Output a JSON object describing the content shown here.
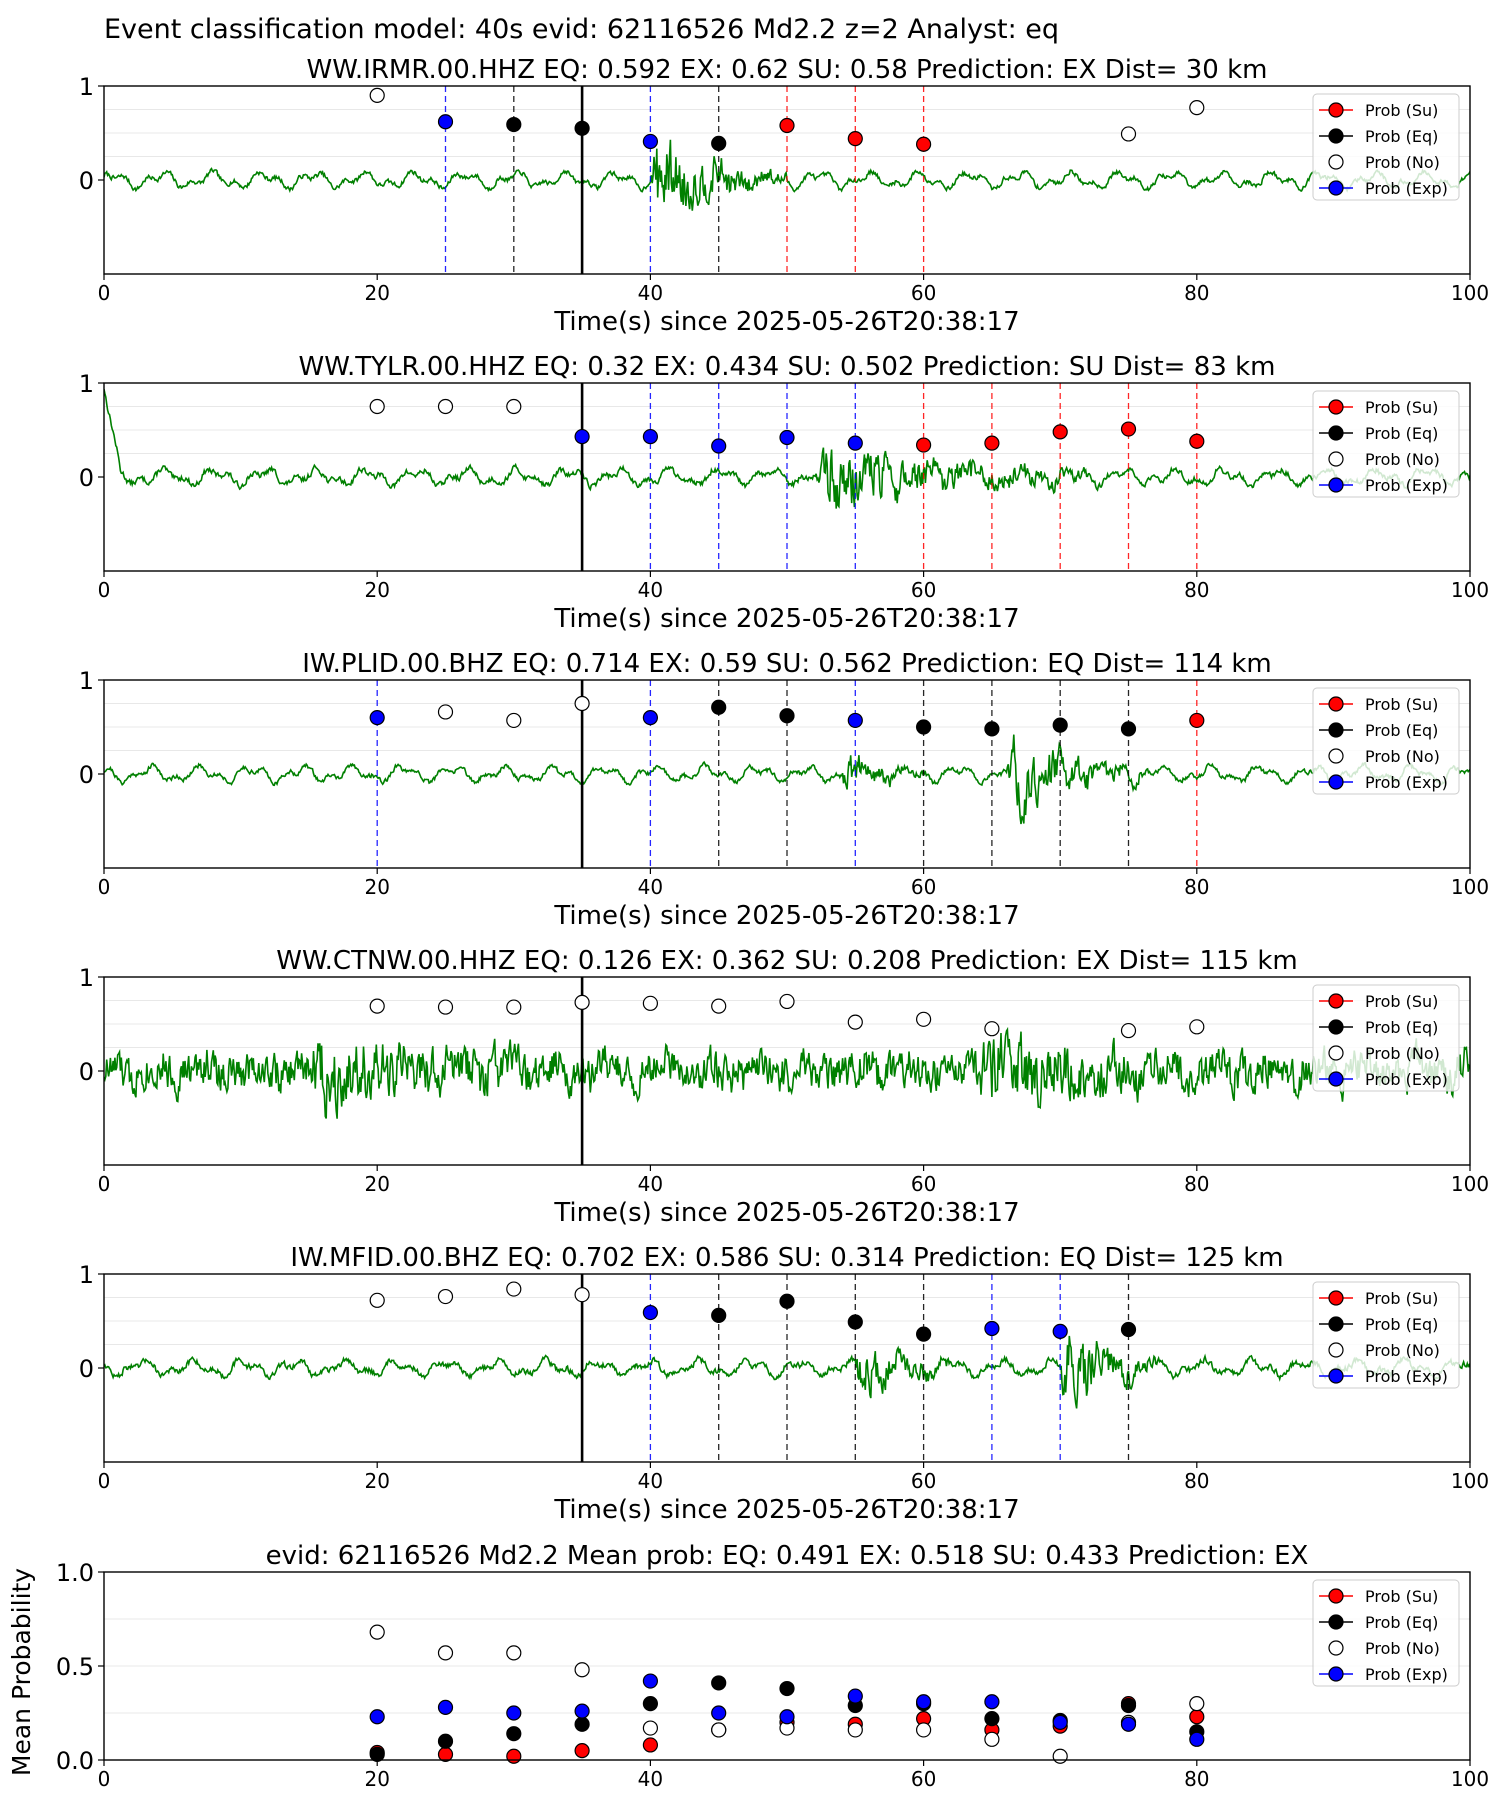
{
  "figure_title": "Event classification model: 40s evid: 62116526 Md2.2 z=2 Analyst: eq",
  "legend": [
    "Prob (Su)",
    "Prob (Eq)",
    "Prob (No)",
    "Prob (Exp)"
  ],
  "colors": {
    "su": "#ff0000",
    "eq": "#000000",
    "no": "#ffffff",
    "exp": "#0000ff",
    "trace": "#008000"
  },
  "chart_data": [
    {
      "type": "scatter",
      "title": "WW.IRMR.00.HHZ    EQ: 0.592  EX: 0.62  SU: 0.58   Prediction: EX    Dist= 30 km",
      "xlabel": "Time(s) since 2025-05-26T20:38:17",
      "ylabel": "",
      "xlim": [
        0,
        100
      ],
      "ylim": [
        -1,
        1
      ],
      "xticks": [
        "0",
        "20",
        "40",
        "60",
        "80",
        "100"
      ],
      "yticks": [
        "1",
        "0"
      ],
      "origin_x": 35,
      "seed": 7,
      "noise": 0.04,
      "burst_start": 40,
      "burst_end": 50,
      "burst_amp": 0.7,
      "burst2_start": 0,
      "burst2_end": 0,
      "burst2_amp": 0,
      "points": [
        {
          "x": 20,
          "y": 0.9,
          "cls": "no"
        },
        {
          "x": 25,
          "y": 0.62,
          "cls": "exp"
        },
        {
          "x": 30,
          "y": 0.59,
          "cls": "eq"
        },
        {
          "x": 35,
          "y": 0.55,
          "cls": "eq"
        },
        {
          "x": 40,
          "y": 0.41,
          "cls": "exp"
        },
        {
          "x": 45,
          "y": 0.39,
          "cls": "eq"
        },
        {
          "x": 50,
          "y": 0.58,
          "cls": "su"
        },
        {
          "x": 55,
          "y": 0.44,
          "cls": "su"
        },
        {
          "x": 60,
          "y": 0.38,
          "cls": "su"
        },
        {
          "x": 75,
          "y": 0.49,
          "cls": "no"
        },
        {
          "x": 80,
          "y": 0.77,
          "cls": "no"
        }
      ]
    },
    {
      "type": "scatter",
      "title": "WW.TYLR.00.HHZ   EQ: 0.32  EX: 0.434  SU: 0.502   Prediction: SU    Dist= 83 km",
      "xlabel": "Time(s) since 2025-05-26T20:38:17",
      "ylabel": "",
      "xlim": [
        0,
        100
      ],
      "ylim": [
        -1,
        1
      ],
      "xticks": [
        "0",
        "20",
        "40",
        "60",
        "80",
        "100"
      ],
      "yticks": [
        "1",
        "0"
      ],
      "origin_x": 35,
      "seed": 13,
      "noise": 0.05,
      "burst_start": 52,
      "burst_end": 72,
      "burst_amp": 0.55,
      "burst2_start": 0,
      "burst2_end": 0,
      "burst2_amp": 0,
      "points": [
        {
          "x": 20,
          "y": 0.75,
          "cls": "no"
        },
        {
          "x": 25,
          "y": 0.75,
          "cls": "no"
        },
        {
          "x": 30,
          "y": 0.75,
          "cls": "no"
        },
        {
          "x": 35,
          "y": 0.43,
          "cls": "exp"
        },
        {
          "x": 40,
          "y": 0.43,
          "cls": "exp"
        },
        {
          "x": 45,
          "y": 0.33,
          "cls": "exp"
        },
        {
          "x": 50,
          "y": 0.42,
          "cls": "exp"
        },
        {
          "x": 55,
          "y": 0.36,
          "cls": "exp"
        },
        {
          "x": 60,
          "y": 0.34,
          "cls": "su"
        },
        {
          "x": 65,
          "y": 0.36,
          "cls": "su"
        },
        {
          "x": 70,
          "y": 0.48,
          "cls": "su"
        },
        {
          "x": 75,
          "y": 0.51,
          "cls": "su"
        },
        {
          "x": 80,
          "y": 0.38,
          "cls": "su"
        }
      ]
    },
    {
      "type": "scatter",
      "title": "IW.PLID.00.BHZ   EQ: 0.714  EX: 0.59  SU: 0.562   Prediction: EQ    Dist= 114 km",
      "xlabel": "Time(s) since 2025-05-26T20:38:17",
      "ylabel": "",
      "xlim": [
        0,
        100
      ],
      "ylim": [
        -1,
        1
      ],
      "xticks": [
        "0",
        "20",
        "40",
        "60",
        "80",
        "100"
      ],
      "yticks": [
        "1",
        "0"
      ],
      "origin_x": 35,
      "seed": 21,
      "noise": 0.04,
      "burst_start": 54,
      "burst_end": 60,
      "burst_amp": 0.3,
      "burst2_start": 66,
      "burst2_end": 76,
      "burst2_amp": 0.7,
      "points": [
        {
          "x": 20,
          "y": 0.6,
          "cls": "exp"
        },
        {
          "x": 25,
          "y": 0.66,
          "cls": "no"
        },
        {
          "x": 30,
          "y": 0.57,
          "cls": "no"
        },
        {
          "x": 35,
          "y": 0.75,
          "cls": "no"
        },
        {
          "x": 40,
          "y": 0.6,
          "cls": "exp"
        },
        {
          "x": 45,
          "y": 0.71,
          "cls": "eq"
        },
        {
          "x": 50,
          "y": 0.62,
          "cls": "eq"
        },
        {
          "x": 55,
          "y": 0.57,
          "cls": "exp"
        },
        {
          "x": 60,
          "y": 0.5,
          "cls": "eq"
        },
        {
          "x": 65,
          "y": 0.48,
          "cls": "eq"
        },
        {
          "x": 70,
          "y": 0.52,
          "cls": "eq"
        },
        {
          "x": 75,
          "y": 0.48,
          "cls": "eq"
        },
        {
          "x": 80,
          "y": 0.57,
          "cls": "su"
        }
      ]
    },
    {
      "type": "scatter",
      "title": "WW.CTNW.00.HHZ   EQ: 0.126  EX: 0.362  SU: 0.208   Prediction: EX    Dist= 115 km",
      "xlabel": "Time(s) since 2025-05-26T20:38:17",
      "ylabel": "",
      "xlim": [
        0,
        100
      ],
      "ylim": [
        -1,
        1
      ],
      "xticks": [
        "0",
        "20",
        "40",
        "60",
        "80",
        "100"
      ],
      "yticks": [
        "1",
        "0"
      ],
      "origin_x": 35,
      "seed": 33,
      "noise": 0.32,
      "burst_start": 15,
      "burst_end": 32,
      "burst_amp": 0.35,
      "burst2_start": 64,
      "burst2_end": 76,
      "burst2_amp": 0.4,
      "points": [
        {
          "x": 20,
          "y": 0.69,
          "cls": "no"
        },
        {
          "x": 25,
          "y": 0.68,
          "cls": "no"
        },
        {
          "x": 30,
          "y": 0.68,
          "cls": "no"
        },
        {
          "x": 35,
          "y": 0.73,
          "cls": "no"
        },
        {
          "x": 40,
          "y": 0.72,
          "cls": "no"
        },
        {
          "x": 45,
          "y": 0.69,
          "cls": "no"
        },
        {
          "x": 50,
          "y": 0.74,
          "cls": "no"
        },
        {
          "x": 55,
          "y": 0.52,
          "cls": "no"
        },
        {
          "x": 60,
          "y": 0.55,
          "cls": "no"
        },
        {
          "x": 65,
          "y": 0.45,
          "cls": "no"
        },
        {
          "x": 75,
          "y": 0.43,
          "cls": "no"
        },
        {
          "x": 80,
          "y": 0.47,
          "cls": "no"
        }
      ]
    },
    {
      "type": "scatter",
      "title": "IW.MFID.00.BHZ   EQ: 0.702  EX: 0.586  SU: 0.314   Prediction: EQ    Dist= 125 km",
      "xlabel": "Time(s) since 2025-05-26T20:38:17",
      "ylabel": "",
      "xlim": [
        0,
        100
      ],
      "ylim": [
        -1,
        1
      ],
      "xticks": [
        "0",
        "20",
        "40",
        "60",
        "80",
        "100"
      ],
      "yticks": [
        "1",
        "0"
      ],
      "origin_x": 35,
      "seed": 47,
      "noise": 0.05,
      "burst_start": 55,
      "burst_end": 62,
      "burst_amp": 0.45,
      "burst2_start": 70,
      "burst2_end": 77,
      "burst2_amp": 0.7,
      "points": [
        {
          "x": 20,
          "y": 0.72,
          "cls": "no"
        },
        {
          "x": 25,
          "y": 0.76,
          "cls": "no"
        },
        {
          "x": 30,
          "y": 0.84,
          "cls": "no"
        },
        {
          "x": 35,
          "y": 0.78,
          "cls": "no"
        },
        {
          "x": 40,
          "y": 0.59,
          "cls": "exp"
        },
        {
          "x": 45,
          "y": 0.56,
          "cls": "eq"
        },
        {
          "x": 50,
          "y": 0.71,
          "cls": "eq"
        },
        {
          "x": 55,
          "y": 0.49,
          "cls": "eq"
        },
        {
          "x": 60,
          "y": 0.36,
          "cls": "eq"
        },
        {
          "x": 65,
          "y": 0.42,
          "cls": "exp"
        },
        {
          "x": 70,
          "y": 0.39,
          "cls": "exp"
        },
        {
          "x": 75,
          "y": 0.41,
          "cls": "eq"
        }
      ]
    },
    {
      "type": "scatter",
      "title": "evid: 62116526  Md2.2   Mean prob:   EQ: 0.491  EX: 0.518  SU: 0.433   Prediction: EX",
      "xlabel": "",
      "ylabel": "Mean Probability",
      "xlim": [
        0,
        100
      ],
      "ylim": [
        0,
        1
      ],
      "xticks": [
        "0",
        "20",
        "40",
        "60",
        "80",
        "100"
      ],
      "yticks": [
        "1.0",
        "0.5",
        "0.0"
      ],
      "x": [
        20,
        25,
        30,
        35,
        40,
        45,
        50,
        55,
        60,
        65,
        70,
        75,
        80
      ],
      "series": [
        {
          "name": "Prob (Su)",
          "cls": "su",
          "values": [
            0.04,
            0.03,
            0.02,
            0.05,
            0.08,
            0.16,
            0.2,
            0.19,
            0.22,
            0.16,
            0.18,
            0.3,
            0.23
          ]
        },
        {
          "name": "Prob (Eq)",
          "cls": "eq",
          "values": [
            0.03,
            0.1,
            0.14,
            0.19,
            0.3,
            0.41,
            0.38,
            0.29,
            0.3,
            0.22,
            0.21,
            0.29,
            0.15
          ]
        },
        {
          "name": "Prob (No)",
          "cls": "no",
          "values": [
            0.68,
            0.57,
            0.57,
            0.48,
            0.17,
            0.16,
            0.17,
            0.16,
            0.16,
            0.11,
            0.02,
            0.2,
            0.3
          ]
        },
        {
          "name": "Prob (Exp)",
          "cls": "exp",
          "values": [
            0.23,
            0.28,
            0.25,
            0.26,
            0.42,
            0.25,
            0.23,
            0.34,
            0.31,
            0.31,
            0.2,
            0.19,
            0.11
          ]
        }
      ]
    }
  ]
}
